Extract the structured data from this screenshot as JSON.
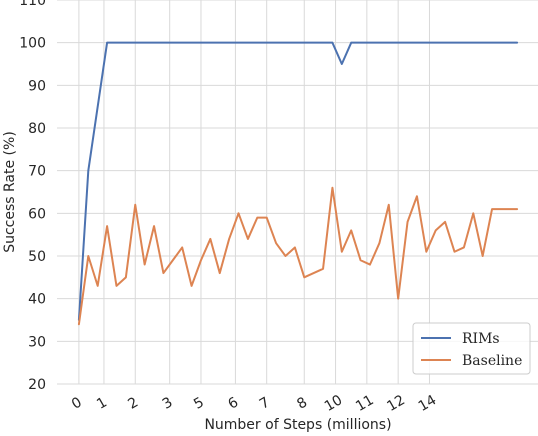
{
  "chart_data": {
    "type": "line",
    "title": "",
    "xlabel": "Number of Steps (millions)",
    "ylabel": "Success Rate (%)",
    "xlim": [
      -0.7,
      14.7
    ],
    "ylim": [
      20,
      110
    ],
    "grid": true,
    "legend_position": "bottom-right",
    "x_ticks": [
      {
        "value": 0,
        "label": "0"
      },
      {
        "value": 0.8,
        "label": "1"
      },
      {
        "value": 1.8,
        "label": "2"
      },
      {
        "value": 2.9,
        "label": "3"
      },
      {
        "value": 3.9,
        "label": "5"
      },
      {
        "value": 5.0,
        "label": "6"
      },
      {
        "value": 6.0,
        "label": "7"
      },
      {
        "value": 7.2,
        "label": "8"
      },
      {
        "value": 8.2,
        "label": "10"
      },
      {
        "value": 9.2,
        "label": "11"
      },
      {
        "value": 10.2,
        "label": "12"
      },
      {
        "value": 11.2,
        "label": "14"
      }
    ],
    "y_ticks": [
      20,
      30,
      40,
      50,
      60,
      70,
      80,
      90,
      100,
      110
    ],
    "series": [
      {
        "name": "RIMs",
        "color": "#4c72b0",
        "x": [
          0,
          0.3,
          0.9,
          8.1,
          8.4,
          8.7,
          14
        ],
        "y": [
          35,
          70,
          100,
          100,
          95,
          100,
          100
        ]
      },
      {
        "name": "Baseline",
        "color": "#dd8452",
        "x": [
          0,
          0.3,
          0.6,
          0.9,
          1.2,
          1.5,
          1.8,
          2.1,
          2.4,
          2.7,
          3.0,
          3.3,
          3.6,
          3.9,
          4.2,
          4.5,
          4.8,
          5.1,
          5.4,
          5.7,
          6.0,
          6.3,
          6.6,
          6.9,
          7.2,
          7.5,
          7.8,
          8.1,
          8.4,
          8.7,
          9.0,
          9.3,
          9.6,
          9.9,
          10.2,
          10.5,
          10.8,
          11.1,
          11.4,
          11.7,
          12.0,
          12.3,
          12.6,
          12.9,
          13.2,
          13.5,
          13.8,
          14.0
        ],
        "y": [
          34,
          50,
          43,
          57,
          43,
          45,
          62,
          48,
          57,
          46,
          49,
          52,
          43,
          49,
          54,
          46,
          54,
          60,
          54,
          59,
          59,
          53,
          50,
          52,
          45,
          46,
          47,
          66,
          51,
          56,
          49,
          48,
          53,
          62,
          40,
          58,
          64,
          51,
          56,
          58,
          51,
          52,
          60,
          50,
          61,
          61,
          61,
          61
        ]
      }
    ]
  }
}
